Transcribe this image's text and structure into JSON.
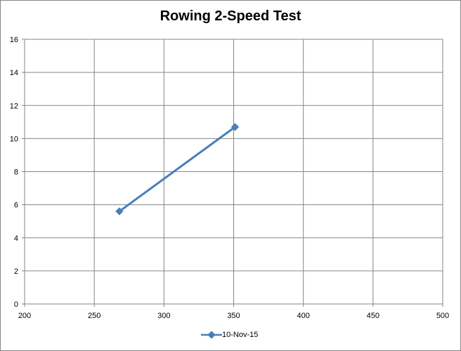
{
  "chart_data": {
    "type": "line",
    "title": "Rowing 2-Speed Test",
    "xlabel": "",
    "ylabel": "",
    "xlim": [
      200,
      500
    ],
    "ylim": [
      0,
      16
    ],
    "xticks": [
      200,
      250,
      300,
      350,
      400,
      450,
      500
    ],
    "yticks": [
      0,
      2,
      4,
      6,
      8,
      10,
      12,
      14,
      16
    ],
    "grid": true,
    "legend": "bottom",
    "series": [
      {
        "name": "10-Nov-15",
        "color": "#4a7ebb",
        "marker": "diamond",
        "x": [
          268,
          351
        ],
        "y": [
          5.6,
          10.7
        ]
      }
    ]
  }
}
